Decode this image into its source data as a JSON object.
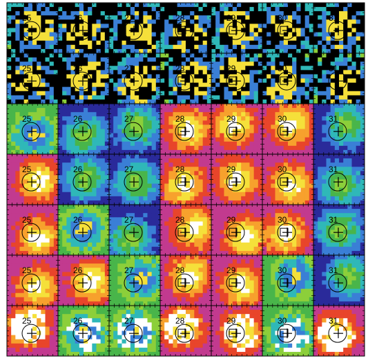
{
  "figure": {
    "rows": 7,
    "columns": 7,
    "panel_labels": [
      "25",
      "26",
      "27",
      "28",
      "29",
      "30",
      "31"
    ],
    "row_colormap_styles": [
      "masked-green",
      "masked-green",
      "smooth",
      "smooth",
      "smooth",
      "smooth",
      "smooth-white"
    ],
    "markers": [
      "cross",
      "circle",
      "square"
    ],
    "colors": {
      "outline": "#000000",
      "mask": "#000000",
      "background": "#ffffff",
      "palette": [
        "#2a2a9a",
        "#3a7fd6",
        "#2fb8b8",
        "#49b54a",
        "#8ccf3a",
        "#f5e03a",
        "#f7a12d",
        "#e8452a",
        "#c23a8f",
        "#7b4bc7",
        "#ffffff"
      ]
    }
  }
}
